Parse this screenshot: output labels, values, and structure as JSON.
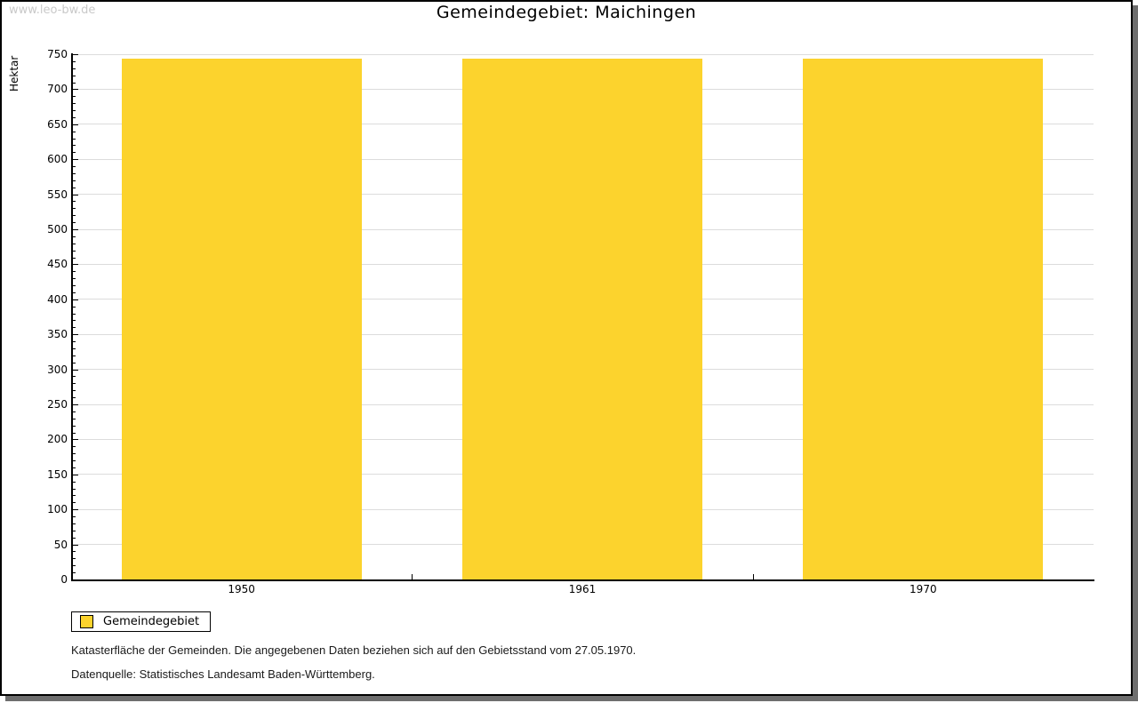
{
  "watermark": "www.leo-bw.de",
  "title": "Gemeindegebiet: Maichingen",
  "chart_data": {
    "type": "bar",
    "title": "Gemeindegebiet: Maichingen",
    "categories": [
      "1950",
      "1961",
      "1970"
    ],
    "series": [
      {
        "name": "Gemeindegebiet",
        "values": [
          744,
          744,
          744
        ]
      }
    ],
    "xlabel": "",
    "ylabel": "Hektar",
    "ylim": [
      0,
      750
    ],
    "y_major_step": 50,
    "y_minor_step": 10,
    "grid": "horizontal-major",
    "legend_position": "bottom-left"
  },
  "legend": {
    "items": [
      {
        "label": "Gemeindegebiet",
        "color": "#fcd32d"
      }
    ]
  },
  "footnotes": [
    "Katasterfläche der Gemeinden. Die angegebenen Daten beziehen sich auf den Gebietsstand vom 27.05.1970.",
    "Datenquelle: Statistisches Landesamt Baden-Württemberg."
  ],
  "colors": {
    "bar": "#fcd32d",
    "gridline": "#dcdcdc",
    "axis": "#000000",
    "watermark": "#c9c9c9",
    "shadow": "#6e6e6e",
    "background": "#ffffff"
  }
}
